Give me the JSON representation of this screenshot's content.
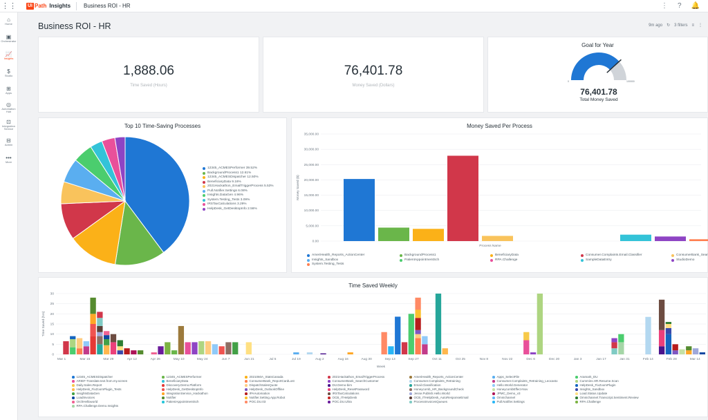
{
  "topbar": {
    "logo_mark": "Ui",
    "logo_path": "Path",
    "app_name": "Insights",
    "page_title": "Business ROI - HR"
  },
  "nav": [
    {
      "label": "Home",
      "icon": "⌂"
    },
    {
      "label": "Orchestrator",
      "icon": "▣"
    },
    {
      "label": "Insights",
      "icon": "📈"
    },
    {
      "label": "Studio",
      "icon": "$"
    },
    {
      "label": "Apps",
      "icon": "⊞"
    },
    {
      "label": "Automation Hub",
      "icon": "◎"
    },
    {
      "label": "Integration Service",
      "icon": "⊡"
    },
    {
      "label": "Admin",
      "icon": "⊟"
    },
    {
      "label": "More",
      "icon": "•••"
    }
  ],
  "header": {
    "title": "Business ROI - HR",
    "refreshed": "9m ago",
    "filters": "3 filters"
  },
  "kpi": {
    "time_saved_value": "1,888.06",
    "time_saved_label": "Time Saved (Hours)",
    "money_saved_value": "76,401.78",
    "money_saved_label": "Money Saved (Dollars)"
  },
  "goal": {
    "title": "Goal for Year",
    "min": "0",
    "max": "100000",
    "value": "76,401.78",
    "label": "Total Money Saved",
    "fraction": 0.764
  },
  "pie": {
    "title": "Top 10 Time-Saving Processes",
    "slices": [
      {
        "name": "12345_ACMESPerformer",
        "pct": "39.52%",
        "value": 39.52,
        "color": "#1f77d4"
      },
      {
        "name": "BackgroundProcess1",
        "pct": "12.61%",
        "value": 12.61,
        "color": "#6ab64a"
      },
      {
        "name": "12345_ACMESDispatcher",
        "pct": "12.50%",
        "value": 12.5,
        "color": "#fbb118"
      },
      {
        "name": "BeneficiaryData",
        "pct": "9.16%",
        "value": 9.16,
        "color": "#d1374a"
      },
      {
        "name": "2021Hackathon_EmailTriggerProcess",
        "pct": "5.53%",
        "value": 5.53,
        "color": "#f9c35c"
      },
      {
        "name": "Pull.Notifier.Settings",
        "pct": "6.08%",
        "value": 6.08,
        "color": "#5aaef0"
      },
      {
        "name": "Insights.DataGen",
        "pct": "4.96%",
        "value": 4.96,
        "color": "#4bcd6e"
      },
      {
        "name": "System.Testing_Tests",
        "pct": "3.09%",
        "value": 3.09,
        "color": "#33c3d8"
      },
      {
        "name": "IRSTaxCalculations",
        "pct": "3.29%",
        "value": 3.29,
        "color": "#e9509a"
      },
      {
        "name": "HelpDesk_GetDesktopInfo",
        "pct": "2.56%",
        "value": 2.56,
        "color": "#8e44c4"
      }
    ]
  },
  "chart_data": [
    {
      "type": "bar",
      "title": "Money Saved Per Process",
      "xlabel": "Process Name",
      "ylabel": "Money Saved ($)",
      "ylim": [
        0,
        35000
      ],
      "yticks": [
        "0.00",
        "5,000.00",
        "10,000.00",
        "15,000.00",
        "20,000.00",
        "25,000.00",
        "30,000.00",
        "35,000.00"
      ],
      "categories": [
        "AmeriHealth_Reports_ActionCenter",
        "BackgroundProcess1",
        "BeneficiaryData",
        "Consumer.Complaints.Email.Classifier",
        "ConsumerBank_SearchCustomer",
        "Insights_Sandbox",
        "PatientAppointmentSch",
        "RPA.Challenge",
        "SampleDataEntry",
        "StudioDemo",
        "System.Testing_Tests"
      ],
      "values": [
        20300,
        4400,
        4000,
        27900,
        1700,
        0,
        0,
        0,
        2100,
        1500,
        600
      ],
      "colors": [
        "#1f77d4",
        "#6ab64a",
        "#fbb118",
        "#d1374a",
        "#f9c35c",
        "#5aaef0",
        "#4bcd6e",
        "#e9509a",
        "#33c3d8",
        "#8e44c4",
        "#ff7f50"
      ]
    },
    {
      "type": "bar",
      "title": "Time Saved Weekly",
      "xlabel": "Week",
      "ylabel": "Time Saved (hrs)",
      "ylim": [
        0,
        30
      ],
      "yticks": [
        "0",
        "5",
        "10",
        "15",
        "20",
        "25",
        "30"
      ],
      "xticks": [
        "Mar 1",
        "Mar 15",
        "Mar 29",
        "Apr 12",
        "Apr 26",
        "May 10",
        "May 24",
        "Jun 7",
        "Jun 21",
        "Jul 5",
        "Jul 19",
        "Aug 2",
        "Aug 16",
        "Aug 30",
        "Sep 13",
        "Sep 27",
        "Oct 11",
        "Oct 25",
        "Nov 8",
        "Nov 22",
        "Dec 6",
        "Dec 20",
        "Jan 3",
        "Jan 17",
        "Jan 31",
        "Feb 14",
        "Feb 28",
        "Mar 14"
      ],
      "weeks": [
        [],
        [
          6.5
        ],
        [
          3.5,
          4,
          1.5
        ],
        [
          3,
          5
        ],
        [
          4,
          2.5
        ],
        [
          9,
          6,
          5,
          8
        ],
        [
          5,
          4,
          2,
          3,
          4,
          3
        ],
        [
          4.5,
          3,
          2,
          2
        ],
        [
          6,
          4
        ],
        [
          2,
          2,
          3
        ],
        [
          3
        ],
        [
          2
        ],
        [
          2
        ],
        [],
        [
          1
        ],
        [
          4
        ],
        [
          6
        ],
        [
          2
        ],
        [
          14
        ],
        [
          6
        ],
        [
          6
        ],
        [
          6.5
        ],
        [
          6.5
        ],
        [
          5
        ],
        [
          4
        ],
        [
          6
        ],
        [
          6
        ],
        [],
        [
          6
        ],
        [],
        [],
        [],
        [],
        [],
        [],
        [
          1
        ],
        [],
        [
          1
        ],
        [],
        [
          0.5
        ],
        [],
        [],
        [],
        [
          1
        ],
        [],
        [],
        [],
        [],
        [
          11
        ],
        [
          4
        ],
        [
          18.6
        ],
        [
          6
        ],
        [
          20
        ],
        [
          8,
          2,
          2,
          6,
          4,
          6
        ],
        [
          5,
          4
        ],
        [],
        [
          30
        ],
        [
          3
        ],
        [],
        [],
        [],
        [],
        [],
        [],
        [],
        [],
        [],
        [],
        [],
        [
          7,
          4
        ],
        [
          1
        ],
        [
          30
        ],
        [],
        [],
        [],
        [],
        [],
        [],
        [],
        [],
        [],
        [],
        [
          3,
          3,
          2
        ],
        [
          6,
          4
        ],
        [],
        [],
        [],
        [
          18.5
        ],
        [],
        [
          4,
          8,
          15
        ],
        [
          10,
          3,
          2,
          1
        ],
        [
          2,
          3
        ],
        [
          2.5
        ],
        [
          2,
          2
        ],
        [
          3
        ],
        [
          1
        ]
      ],
      "legend": [
        {
          "name": "12345_ACMESDispatcher",
          "color": "#1f77d4"
        },
        {
          "name": "12345_ACMESPerformer",
          "color": "#6ab64a"
        },
        {
          "name": "2021060A_StatsCanada",
          "color": "#fbb118"
        },
        {
          "name": "2021Hackathon_EmailTriggerProcess",
          "color": "#d1374a"
        },
        {
          "name": "AmeriHealth_Reports_ActionCenter",
          "color": "#9c7a3c"
        },
        {
          "name": "Apps_SelectFile",
          "color": "#5aaef0"
        },
        {
          "name": "Aramark_DU",
          "color": "#4bcd6e"
        },
        {
          "name": "ARIEF-Translate.text.from.my.screen",
          "color": "#e9509a"
        },
        {
          "name": "BeneficiaryData",
          "color": "#33c3d8"
        },
        {
          "name": "ConsumerBank_ReportCardLost",
          "color": "#ff7f50"
        },
        {
          "name": "ConsumerBank_SearchCustomer",
          "color": "#8e44c4"
        },
        {
          "name": "Consumer.Complaints_Retraining",
          "color": "#b3d8f0"
        },
        {
          "name": "Consumer.Complaints_Retraining_Leocasto",
          "color": "#c23b8a"
        },
        {
          "name": "Cummins.HR.Resume.Scan",
          "color": "#aed581"
        },
        {
          "name": "Daily.Sales.Report",
          "color": "#f7c948"
        },
        {
          "name": "Discovery.Demo.Platform",
          "color": "#e53935"
        },
        {
          "name": "DispatchSalesQuote",
          "color": "#ffcc80"
        },
        {
          "name": "DU.Demo-bim",
          "color": "#4a148c"
        },
        {
          "name": "Email.Classification",
          "color": "#26a69a"
        },
        {
          "name": "Hello.World.Generator",
          "color": "#90caf9"
        },
        {
          "name": "HelpDesk_FixZoomPlugin",
          "color": "#1565c0"
        },
        {
          "name": "HelpDesk_FixZoomPlugin_Tests",
          "color": "#ffb74d"
        },
        {
          "name": "HelpDesk_GetDesktopInfo",
          "color": "#ef5350"
        },
        {
          "name": "HelpDesk_OutlookOffline",
          "color": "#7e57c2"
        },
        {
          "name": "HelpDesk_ResetPassword",
          "color": "#ec407a"
        },
        {
          "name": "Honeycomb_HR_BackgroundCheck",
          "color": "#8d6e63"
        },
        {
          "name": "HoneycombEffect-Nov",
          "color": "#c5e1a5"
        },
        {
          "name": "Insights_Sandbox",
          "color": "#3949ab"
        },
        {
          "name": "InsightsDataGen",
          "color": "#43a047"
        },
        {
          "name": "IntegrationService_Hackathon",
          "color": "#ffa726"
        },
        {
          "name": "IPAAutomation",
          "color": "#b71c1c"
        },
        {
          "name": "IRSTaxCalculations",
          "color": "#6d4c41"
        },
        {
          "name": "Jesse.Publish.Hello.World",
          "color": "#9fa8da"
        },
        {
          "name": "JPMC_Demo_v3",
          "color": "#ad1457"
        },
        {
          "name": "Load.Status.Update",
          "color": "#ffe082"
        },
        {
          "name": "LoadInvoices",
          "color": "#0d47a1"
        },
        {
          "name": "Notifier",
          "color": "#558b2f"
        },
        {
          "name": "Notifier.Setting.App.Robot",
          "color": "#fbc02d"
        },
        {
          "name": "OCB_ITHelpDesk",
          "color": "#c62828"
        },
        {
          "name": "OCB_ITHelpDesk_AutoResponseEmail",
          "color": "#5d4037"
        },
        {
          "name": "Omnichannel",
          "color": "#64b5f6"
        },
        {
          "name": "Omnichannel.Transcript.Sentiment.Review",
          "color": "#2e7d32"
        },
        {
          "name": "OrchHelloworld",
          "color": "#f06292"
        },
        {
          "name": "PatientAppointmentSch",
          "color": "#26c6da"
        },
        {
          "name": "POC.DU.03",
          "color": "#ff8a65"
        },
        {
          "name": "POC.DU.Ultra",
          "color": "#6a1b9a"
        },
        {
          "name": "ProcessInvoicesQueues",
          "color": "#80cbc4"
        },
        {
          "name": "Pull.Notifier.Settings",
          "color": "#29b6f6"
        },
        {
          "name": "RPA.Challenge",
          "color": "#7cb342"
        },
        {
          "name": "RPA.Challenge.Demo.Insights",
          "color": "#a5d6a7"
        }
      ]
    }
  ],
  "money_legend": [
    {
      "name": "AmeriHealth_Reports_ActionCenter",
      "color": "#1f77d4"
    },
    {
      "name": "BackgroundProcess1",
      "color": "#6ab64a"
    },
    {
      "name": "BeneficiaryData",
      "color": "#fbb118"
    },
    {
      "name": "Consumer.Complaints.Email.Classifier",
      "color": "#d1374a"
    },
    {
      "name": "ConsumerBank_SearchCustomer",
      "color": "#f9c35c"
    },
    {
      "name": "Insights_Sandbox",
      "color": "#5aaef0"
    },
    {
      "name": "PatientAppointmentSch",
      "color": "#4bcd6e"
    },
    {
      "name": "RPA.Challenge",
      "color": "#e9509a"
    },
    {
      "name": "SampleDataEntry",
      "color": "#33c3d8"
    },
    {
      "name": "StudioDemo",
      "color": "#8e44c4"
    },
    {
      "name": "System.Testing_Tests",
      "color": "#ff7f50"
    }
  ]
}
